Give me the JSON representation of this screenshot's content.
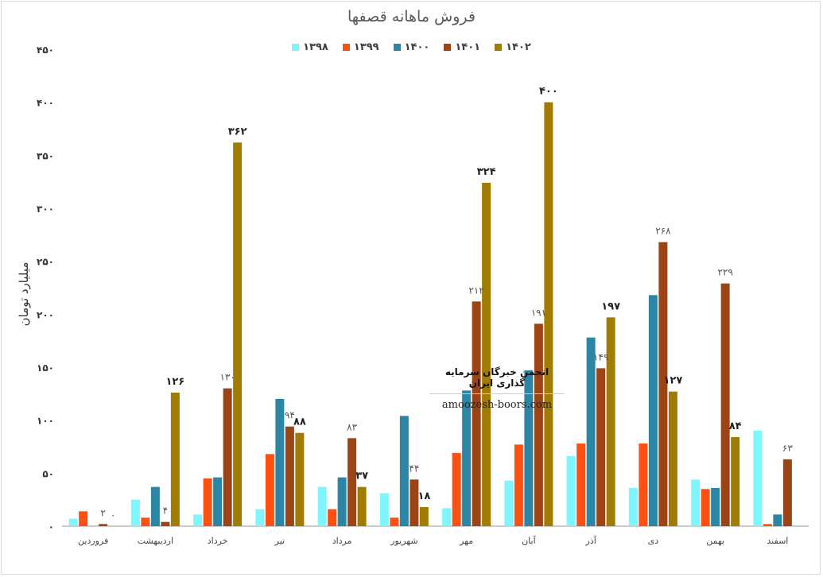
{
  "chart_data": {
    "type": "bar",
    "title": "فروش ماهانه قصفها",
    "ylabel": "میلیارد تومان",
    "xlabel": "",
    "ylim": [
      0,
      450
    ],
    "yticks": [
      "۰",
      "۵۰",
      "۱۰۰",
      "۱۵۰",
      "۲۰۰",
      "۲۵۰",
      "۳۰۰",
      "۳۵۰",
      "۴۰۰",
      "۴۵۰"
    ],
    "ytick_values": [
      0,
      50,
      100,
      150,
      200,
      250,
      300,
      350,
      400,
      450
    ],
    "grid": false,
    "legend_position": "top",
    "categories": [
      "فروردین",
      "اردیبهشت",
      "خرداد",
      "تیر",
      "مرداد",
      "شهریور",
      "مهر",
      "آبان",
      "آذر",
      "دی",
      "بهمن",
      "اسفند"
    ],
    "series": [
      {
        "name": "۱۳۹۸",
        "color": "#7ff6fd",
        "values": [
          7,
          25,
          11,
          16,
          37,
          31,
          17,
          43,
          66,
          36,
          44,
          90
        ]
      },
      {
        "name": "۱۳۹۹",
        "color": "#ff5014",
        "values": [
          14,
          8,
          45,
          68,
          16,
          8,
          69,
          77,
          78,
          78,
          35,
          2
        ]
      },
      {
        "name": "۱۴۰۰",
        "color": "#2b85a5",
        "values": [
          0,
          37,
          46,
          120,
          46,
          104,
          128,
          147,
          178,
          218,
          36,
          11
        ]
      },
      {
        "name": "۱۴۰۱",
        "color": "#9c4415",
        "values": [
          2,
          4,
          130,
          94,
          83,
          44,
          212,
          191,
          149,
          268,
          229,
          63
        ]
      },
      {
        "name": "۱۴۰۲",
        "color": "#a07c05",
        "values": [
          0,
          126,
          362,
          88,
          37,
          18,
          324,
          400,
          197,
          127,
          84,
          null
        ]
      }
    ],
    "data_labels": [
      {
        "text": "۲",
        "category": 0,
        "series": 3,
        "bold": false
      },
      {
        "text": "۰",
        "category": 0,
        "series": 4,
        "bold": false
      },
      {
        "text": "۱۲۶",
        "category": 1,
        "series": 4,
        "bold": true
      },
      {
        "text": "۴",
        "category": 1,
        "series": 3,
        "bold": false
      },
      {
        "text": "۱۳۰",
        "category": 2,
        "series": 3,
        "bold": false
      },
      {
        "text": "۳۶۲",
        "category": 2,
        "series": 4,
        "bold": true
      },
      {
        "text": "۹۴",
        "category": 3,
        "series": 3,
        "bold": false
      },
      {
        "text": "۸۸",
        "category": 3,
        "series": 4,
        "bold": true
      },
      {
        "text": "۸۳",
        "category": 4,
        "series": 3,
        "bold": false
      },
      {
        "text": "۳۷",
        "category": 4,
        "series": 4,
        "bold": true
      },
      {
        "text": "۴۴",
        "category": 5,
        "series": 3,
        "bold": false
      },
      {
        "text": "۱۸",
        "category": 5,
        "series": 4,
        "bold": true
      },
      {
        "text": "۲۱۲",
        "category": 6,
        "series": 3,
        "bold": false
      },
      {
        "text": "۳۲۴",
        "category": 6,
        "series": 4,
        "bold": true
      },
      {
        "text": "۱۹۱",
        "category": 7,
        "series": 3,
        "bold": false
      },
      {
        "text": "۴۰۰",
        "category": 7,
        "series": 4,
        "bold": true
      },
      {
        "text": "۱۴۹",
        "category": 8,
        "series": 3,
        "bold": false
      },
      {
        "text": "۱۹۷",
        "category": 8,
        "series": 4,
        "bold": true
      },
      {
        "text": "۲۶۸",
        "category": 9,
        "series": 3,
        "bold": false
      },
      {
        "text": "۱۲۷",
        "category": 9,
        "series": 4,
        "bold": true
      },
      {
        "text": "۲۲۹",
        "category": 10,
        "series": 3,
        "bold": false
      },
      {
        "text": "۸۴",
        "category": 10,
        "series": 4,
        "bold": true
      },
      {
        "text": "۶۳",
        "category": 11,
        "series": 3,
        "bold": false
      }
    ]
  },
  "watermark": {
    "title": "انجمن خبرگان سرمایه گذاری ایران",
    "url": "amoozesh-boors.com"
  }
}
